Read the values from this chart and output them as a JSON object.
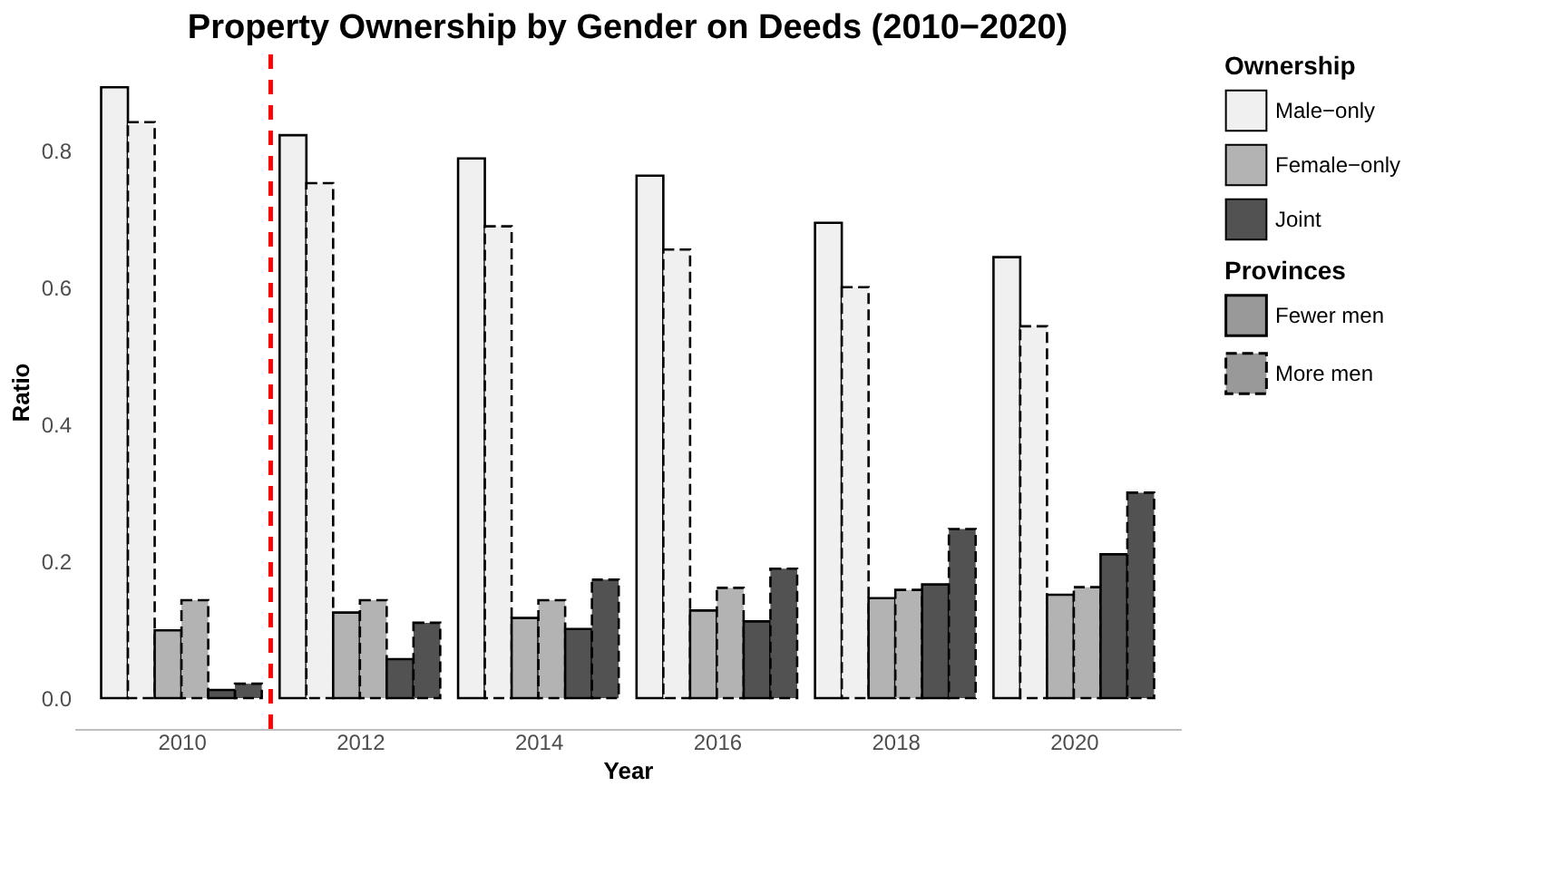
{
  "chart_data": {
    "type": "bar",
    "title": "Property Ownership by Gender on Deeds (2010−2020)",
    "xlabel": "Year",
    "ylabel": "Ratio",
    "legend_title": "Ownership",
    "x": [
      2010,
      2012,
      2014,
      2016,
      2018,
      2020
    ],
    "xlim": [
      2008.8,
      2021.2
    ],
    "xticks": [
      2010,
      2012,
      2014,
      2016,
      2018,
      2020
    ],
    "ylim": [
      -0.045,
      0.94
    ],
    "yticks": [
      {
        "value": 0,
        "label": "0.0"
      },
      0.2,
      0.4,
      0.6,
      0.8
    ],
    "series": [
      {
        "name": "Male−only",
        "color": "#f0f0f0",
        "values": [
          0.892,
          0.822,
          0.788,
          0.763,
          0.694,
          0.644
        ]
      },
      {
        "color": "#f0f0f0",
        "values": [
          0.841,
          0.752,
          0.689,
          0.655,
          0.6,
          0.543
        ]
      },
      {
        "name": "Female−only",
        "color": "#b3b3b3",
        "values": [
          0.099,
          0.125,
          0.117,
          0.128,
          0.146,
          0.151
        ]
      },
      {
        "color": "#b3b3b3",
        "values": [
          0.143,
          0.143,
          0.143,
          0.161,
          0.158,
          0.162
        ]
      },
      {
        "name": "Joint",
        "color": "#525252",
        "values": [
          0.012,
          0.057,
          0.101,
          0.112,
          0.166,
          0.21
        ]
      },
      {
        "color": "#525252",
        "values": [
          0.021,
          0.11,
          0.173,
          0.189,
          0.247,
          0.3
        ]
      }
    ],
    "ref_lines": [
      {
        "axis": "x",
        "value": 2011,
        "color": "#ff0000",
        "line_style": "dashed"
      }
    ],
    "annotations": [
      "Provinces",
      "Fewer men",
      "More men"
    ],
    "legend": "right",
    "grid": false
  }
}
